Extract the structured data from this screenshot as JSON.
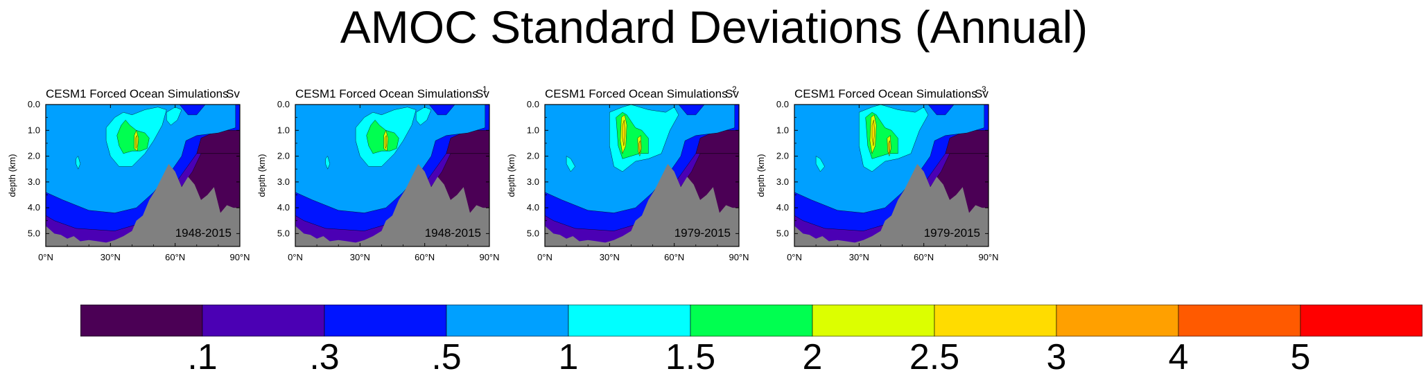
{
  "title": "AMOC Standard Deviations (Annual)",
  "colors": {
    "levels": [
      "#4b0055",
      "#4b00b4",
      "#0014ff",
      "#00a0ff",
      "#00ffff",
      "#00ff50",
      "#dcff00",
      "#ffdc00",
      "#ffa000",
      "#ff5a00",
      "#ff0000"
    ],
    "land": "#808080"
  },
  "chart_data": [
    {
      "type": "heatmap",
      "title": "CESM1 Forced Ocean Simulations",
      "units": "Sv",
      "index": "",
      "period": "1948-2015",
      "xlabel": "",
      "ylabel": "depth (km)",
      "xlim": [
        0,
        90
      ],
      "ylim": [
        0,
        5.5
      ],
      "xticks": [
        "0°N",
        "30°N",
        "60°N",
        "90°N"
      ],
      "yticks": [
        "0.0",
        "1.0",
        "2.0",
        "3.0",
        "4.0",
        "5.0"
      ]
    },
    {
      "type": "heatmap",
      "title": "CESM1 Forced Ocean Simulations",
      "units": "Sv",
      "index": "1",
      "period": "1948-2015",
      "xlabel": "",
      "ylabel": "depth (km)",
      "xlim": [
        0,
        90
      ],
      "ylim": [
        0,
        5.5
      ],
      "xticks": [
        "0°N",
        "30°N",
        "60°N",
        "90°N"
      ],
      "yticks": [
        "0.0",
        "1.0",
        "2.0",
        "3.0",
        "4.0",
        "5.0"
      ]
    },
    {
      "type": "heatmap",
      "title": "CESM1 Forced Ocean Simulations",
      "units": "Sv",
      "index": "2",
      "period": "1979-2015",
      "xlabel": "",
      "ylabel": "depth (km)",
      "xlim": [
        0,
        90
      ],
      "ylim": [
        0,
        5.5
      ],
      "xticks": [
        "0°N",
        "30°N",
        "60°N",
        "90°N"
      ],
      "yticks": [
        "0.0",
        "1.0",
        "2.0",
        "3.0",
        "4.0",
        "5.0"
      ]
    },
    {
      "type": "heatmap",
      "title": "CESM1 Forced Ocean Simulations",
      "units": "Sv",
      "index": "3",
      "period": "1979-2015",
      "xlabel": "",
      "ylabel": "depth (km)",
      "xlim": [
        0,
        90
      ],
      "ylim": [
        0,
        5.5
      ],
      "xticks": [
        "0°N",
        "30°N",
        "60°N",
        "90°N"
      ],
      "yticks": [
        "0.0",
        "1.0",
        "2.0",
        "3.0",
        "4.0",
        "5.0"
      ]
    }
  ],
  "colorbar": {
    "labels": [
      ".1",
      ".3",
      ".5",
      "1",
      "1.5",
      "2",
      "2.5",
      "3",
      "4",
      "5"
    ]
  }
}
